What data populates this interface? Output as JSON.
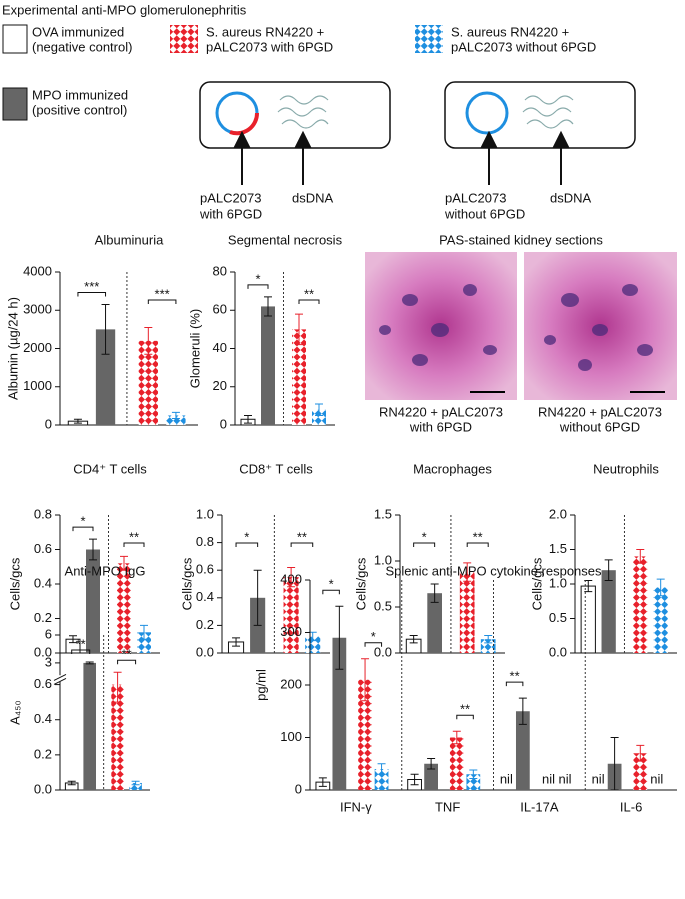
{
  "title": "Experimental anti-MPO glomerulonephritis",
  "legend": [
    {
      "lines": [
        "OVA immunized",
        "(negative control)"
      ],
      "color": "#ffffff"
    },
    {
      "lines": [
        "MPO immunized",
        "(positive control)"
      ],
      "color": "#666666"
    },
    {
      "lines": [
        "S. aureus RN4220 +",
        "pALC2073 with 6PGD"
      ],
      "color": "#e8212b",
      "pattern": "diamond"
    },
    {
      "lines": [
        "S. aureus RN4220 +",
        "pALC2073 without 6PGD"
      ],
      "color": "#1e8fe0",
      "pattern": "diamond"
    }
  ],
  "diagrams": [
    {
      "labels": [
        {
          "lines": [
            "pALC2073",
            "with 6PGD"
          ]
        },
        {
          "lines": [
            "dsDNA"
          ]
        }
      ]
    },
    {
      "labels": [
        {
          "lines": [
            "pALC2073",
            "without 6PGD"
          ]
        },
        {
          "lines": [
            "dsDNA"
          ]
        }
      ]
    }
  ],
  "images": {
    "title": "PAS-stained kidney sections",
    "captions": [
      {
        "lines": [
          "RN4220 + pALC2073",
          "with 6PGD"
        ],
        "color": "#e8212b"
      },
      {
        "lines": [
          "RN4220 + pALC2073",
          "without 6PGD"
        ],
        "color": "#1e8fe0"
      }
    ]
  },
  "chart_data": [
    {
      "type": "bar",
      "title": "Albuminuria",
      "y_label": "Albumin (µg/24 h)",
      "values": [
        100,
        2500,
        2200,
        250
      ],
      "errors": [
        50,
        650,
        350,
        80
      ],
      "ylim": [
        0,
        4000
      ],
      "yticks": [
        0,
        1000,
        2000,
        3000,
        4000
      ],
      "significance": [
        "***",
        "***"
      ]
    },
    {
      "type": "bar",
      "title": "Segmental necrosis",
      "y_label": "Glomeruli (%)",
      "values": [
        3,
        62,
        50,
        8
      ],
      "errors": [
        2,
        5,
        8,
        3
      ],
      "ylim": [
        0,
        80
      ],
      "yticks": [
        0,
        20,
        40,
        60,
        80
      ],
      "significance": [
        "*",
        "**"
      ]
    },
    {
      "type": "bar",
      "title": "CD4⁺ T cells",
      "y_label": "Cells/gcs",
      "values": [
        0.08,
        0.6,
        0.52,
        0.12
      ],
      "errors": [
        0.02,
        0.06,
        0.04,
        0.04
      ],
      "ylim": [
        0,
        0.8
      ],
      "yticks": [
        {
          "value": 0,
          "label": "0.0"
        },
        0.2,
        0.4,
        0.6,
        0.8
      ],
      "significance": [
        "*",
        "**"
      ]
    },
    {
      "type": "bar",
      "title": "CD8⁺ T cells",
      "y_label": "Cells/gcs",
      "values": [
        0.08,
        0.4,
        0.55,
        0.12
      ],
      "errors": [
        0.03,
        0.2,
        0.07,
        0.03
      ],
      "ylim": [
        0,
        1
      ],
      "yticks": [
        {
          "value": 0,
          "label": "0.0"
        },
        0.2,
        0.4,
        0.6,
        0.8,
        {
          "value": 1,
          "label": "1.0"
        }
      ],
      "significance": [
        "*",
        "**"
      ]
    },
    {
      "type": "bar",
      "title": "Macrophages",
      "y_label": "Cells/gcs",
      "values": [
        0.15,
        0.65,
        0.88,
        0.15
      ],
      "errors": [
        0.04,
        0.1,
        0.1,
        0.04
      ],
      "ylim": [
        0,
        1.5
      ],
      "yticks": [
        {
          "value": 0,
          "label": "0.0"
        },
        0.5,
        {
          "value": 1,
          "label": "1.0"
        },
        1.5
      ],
      "significance": [
        "*",
        "**"
      ]
    },
    {
      "type": "bar",
      "title": "Neutrophils",
      "y_label": "Cells/gcs",
      "values": [
        0.97,
        1.2,
        1.4,
        0.95
      ],
      "errors": [
        0.08,
        0.15,
        0.1,
        0.12
      ],
      "ylim": [
        0,
        2
      ],
      "yticks": [
        {
          "value": 0,
          "label": "0.0"
        },
        0.5,
        {
          "value": 1,
          "label": "1.0"
        },
        1.5,
        {
          "value": 2,
          "label": "2.0"
        }
      ],
      "significance": []
    },
    {
      "type": "bar",
      "title": "Anti-MPO IgG",
      "y_label": "A₄₅₀",
      "values": [
        0.04,
        3,
        0.6,
        0.04
      ],
      "errors": [
        0.01,
        0.1,
        0.1,
        0.01
      ],
      "ylim": [
        0,
        6
      ],
      "ybreak": [
        0.6,
        2
      ],
      "yticks": [
        {
          "value": 0,
          "label": "0.0"
        },
        0.2,
        0.4,
        0.6,
        3,
        6
      ],
      "significance": [
        "**",
        "**"
      ]
    },
    {
      "type": "grouped-bar",
      "title": "Splenic anti-MPO cytokine responses",
      "y_label": "pg/ml",
      "categories": [
        "IFN-γ",
        "TNF",
        "IL-17A",
        "IL-6"
      ],
      "series": [
        {
          "values": [
            15,
            20,
            null,
            null
          ],
          "errors": [
            8,
            10,
            null,
            null
          ],
          "value_labels": [
            null,
            null,
            "nil",
            "nil"
          ]
        },
        {
          "values": [
            290,
            50,
            150,
            50
          ],
          "errors": [
            60,
            10,
            25,
            50
          ]
        },
        {
          "values": [
            210,
            100,
            null,
            70
          ],
          "errors": [
            40,
            12,
            null,
            15
          ],
          "value_labels": [
            null,
            null,
            "nil",
            null
          ]
        },
        {
          "values": [
            40,
            30,
            null,
            null
          ],
          "errors": [
            10,
            8,
            null,
            null
          ],
          "value_labels": [
            null,
            null,
            "nil",
            "nil"
          ]
        }
      ],
      "ylim": [
        0,
        400
      ],
      "yticks": [
        0,
        100,
        200,
        300,
        400
      ],
      "significance": [
        "*",
        "*",
        "**",
        "**"
      ]
    }
  ]
}
